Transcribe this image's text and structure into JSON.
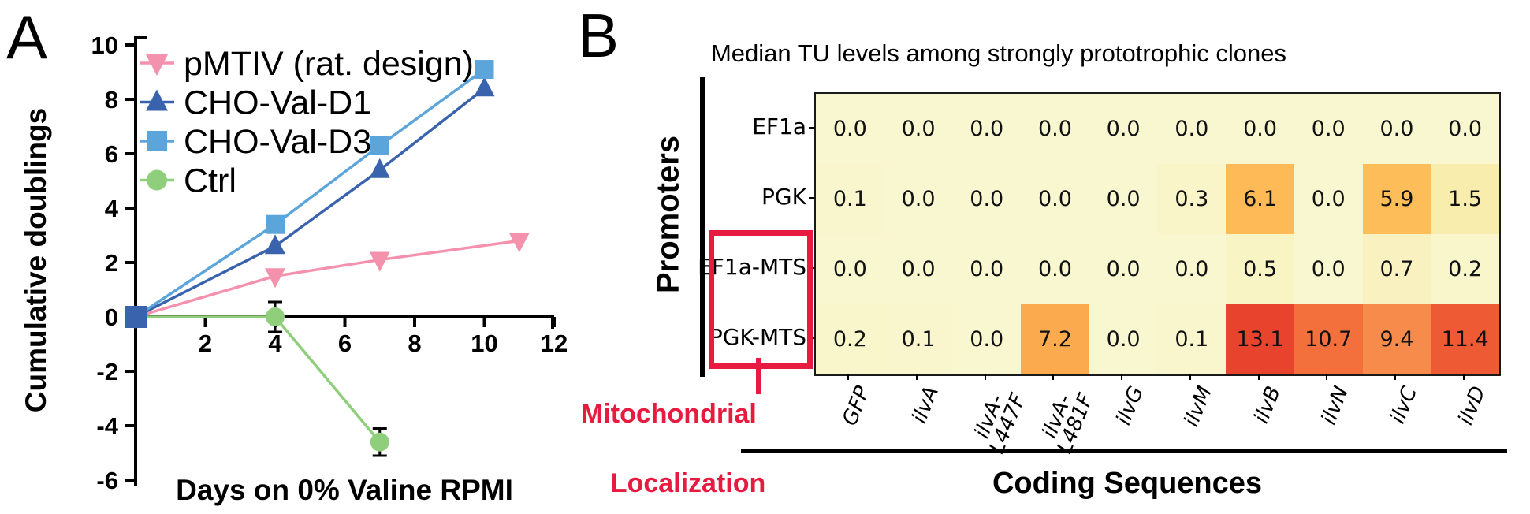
{
  "figure": {
    "panel_a_label": "A",
    "panel_b_label": "B"
  },
  "chart_data": [
    {
      "type": "line",
      "title": "",
      "xlabel": "Days on 0% Valine RPMI",
      "ylabel": "Cumulative doublings",
      "xlim": [
        0,
        12
      ],
      "ylim": [
        -6,
        10
      ],
      "x_ticks": [
        2,
        4,
        6,
        8,
        10,
        12
      ],
      "y_ticks": [
        10,
        8,
        6,
        4,
        2,
        0,
        -2,
        -4,
        -6
      ],
      "grid": false,
      "legend_position": "top-left",
      "axis_color": "#000000",
      "origin_marker": {
        "shape": "square",
        "color": "#3A63AE"
      },
      "series": [
        {
          "name": "pMTIV (rat. design)",
          "marker": "triangle-down",
          "color": "#F492AE",
          "x": [
            0,
            4,
            7,
            11
          ],
          "y": [
            0,
            1.5,
            2.1,
            2.8
          ]
        },
        {
          "name": "CHO-Val-D1",
          "marker": "triangle-up",
          "color": "#3A63AE",
          "x": [
            0,
            4,
            7,
            10
          ],
          "y": [
            0,
            2.6,
            5.4,
            8.4
          ]
        },
        {
          "name": "CHO-Val-D3",
          "marker": "square",
          "color": "#5CA5DB",
          "x": [
            0,
            4,
            7,
            10
          ],
          "y": [
            0,
            3.4,
            6.3,
            9.1
          ]
        },
        {
          "name": "Ctrl",
          "marker": "circle",
          "color": "#8FCE7B",
          "x": [
            0,
            4,
            7
          ],
          "y": [
            0,
            0,
            -4.6
          ],
          "yerr": [
            0,
            0.55,
            0.5
          ]
        }
      ]
    },
    {
      "type": "heatmap",
      "title": "Median TU levels among strongly prototrophic clones",
      "xlabel": "Coding Sequences",
      "ylabel": "Promoters",
      "rows": [
        "EF1a",
        "PGK",
        "EF1a-MTS",
        "PGK-MTS"
      ],
      "columns": [
        "GFP",
        "ilvA",
        "ilvA-\nL447F",
        "ilvA-\nL481F",
        "ilvG",
        "ilvM",
        "ilvB",
        "ilvN",
        "ilvC",
        "ilvD"
      ],
      "values": [
        [
          0.0,
          0.0,
          0.0,
          0.0,
          0.0,
          0.0,
          0.0,
          0.0,
          0.0,
          0.0
        ],
        [
          0.1,
          0.0,
          0.0,
          0.0,
          0.0,
          0.3,
          6.1,
          0.0,
          5.9,
          1.5
        ],
        [
          0.0,
          0.0,
          0.0,
          0.0,
          0.0,
          0.0,
          0.5,
          0.0,
          0.7,
          0.2
        ],
        [
          0.2,
          0.1,
          0.0,
          7.2,
          0.0,
          0.1,
          13.1,
          10.7,
          9.4,
          11.4
        ]
      ],
      "value_range": [
        0,
        13.1
      ],
      "color_stops": [
        [
          0.0,
          "#F9F7CF"
        ],
        [
          1.5,
          "#F9EDAE"
        ],
        [
          5.9,
          "#FDBD59"
        ],
        [
          7.2,
          "#FBAB4E"
        ],
        [
          9.4,
          "#F78B4B"
        ],
        [
          10.7,
          "#F3703C"
        ],
        [
          11.4,
          "#EE5A33"
        ],
        [
          13.1,
          "#E8432C"
        ]
      ],
      "annotation": {
        "line1": "Mitochondrial",
        "line2": "Localization",
        "color": "#E61B3F",
        "applies_to_rows": [
          "EF1a-MTS",
          "PGK-MTS"
        ]
      }
    }
  ]
}
